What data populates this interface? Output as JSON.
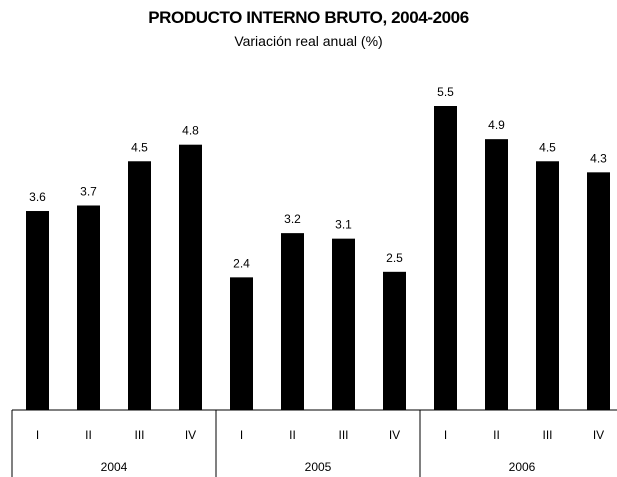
{
  "chart_data": {
    "type": "bar",
    "title": "PRODUCTO INTERNO BRUTO, 2004-2006",
    "subtitle": "Variación real anual (%)",
    "xlabel": "",
    "ylabel": "",
    "ylim": [
      0,
      5.5
    ],
    "grid": false,
    "legend": "none",
    "categories": [
      "I",
      "II",
      "III",
      "IV",
      "I",
      "II",
      "III",
      "IV",
      "I",
      "II",
      "III",
      "IV"
    ],
    "groups": [
      {
        "label": "2004",
        "count": 4
      },
      {
        "label": "2005",
        "count": 4
      },
      {
        "label": "2006",
        "count": 4
      }
    ],
    "values": [
      3.6,
      3.7,
      4.5,
      4.8,
      2.4,
      3.2,
      3.1,
      2.5,
      5.5,
      4.9,
      4.5,
      4.3
    ],
    "value_labels": [
      "3.6",
      "3.7",
      "4.5",
      "4.8",
      "2.4",
      "3.2",
      "3.1",
      "2.5",
      "5.5",
      "4.9",
      "4.5",
      "4.3"
    ],
    "bar_color": "#000000"
  }
}
